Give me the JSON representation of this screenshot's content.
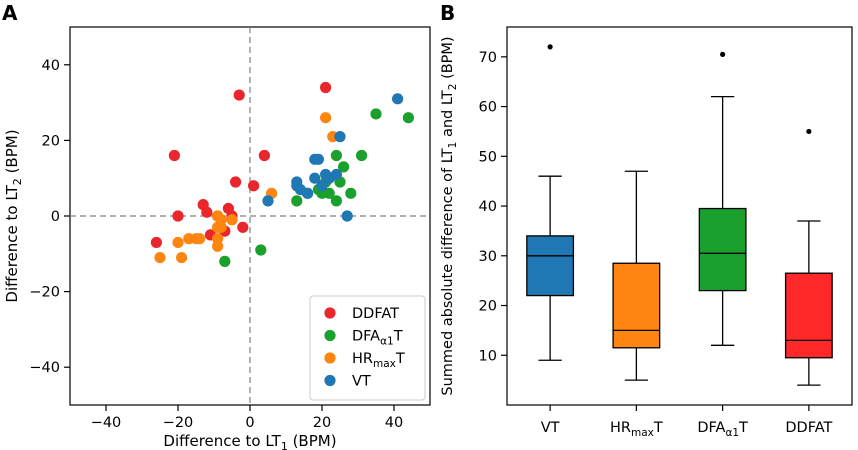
{
  "chart_data": [
    {
      "panel_label": "A",
      "type": "scatter",
      "title": "",
      "xlabel": "Difference to LT",
      "xlabel_sub": "1",
      "xlabel_suffix": " (BPM)",
      "ylabel": "Difference to LT",
      "ylabel_sub": "2",
      "ylabel_suffix": " (BPM)",
      "xlim": [
        -50,
        50
      ],
      "ylim": [
        -50,
        50
      ],
      "xticks": [
        -40,
        -20,
        0,
        20,
        40
      ],
      "yticks": [
        -40,
        -20,
        0,
        20,
        40
      ],
      "xtick_labels": [
        "−40",
        "−20",
        "0",
        "20",
        "40"
      ],
      "ytick_labels": [
        "−40",
        "−20",
        "0",
        "20",
        "40"
      ],
      "reference_lines": "dashed at x = 0 and y = 0",
      "legend_position": "lower-right",
      "series": [
        {
          "name": "DDFAT",
          "legend_main": "DDFAT",
          "legend_sub": "",
          "legend_suffix": "",
          "color": "#e8262b",
          "points": [
            [
              -3,
              32
            ],
            [
              21,
              34
            ],
            [
              -21,
              16
            ],
            [
              4,
              16
            ],
            [
              -4,
              9
            ],
            [
              1,
              8
            ],
            [
              -13,
              3
            ],
            [
              -12,
              1
            ],
            [
              -20,
              0
            ],
            [
              -9,
              0
            ],
            [
              -6,
              2
            ],
            [
              -5,
              0
            ],
            [
              -2,
              -3
            ],
            [
              -7,
              -4
            ],
            [
              -11,
              -5
            ],
            [
              -26,
              -7
            ]
          ]
        },
        {
          "name": "DFAα1T",
          "legend_main": "DFA",
          "legend_sub": "α1",
          "legend_suffix": "T",
          "color": "#1aa02c",
          "points": [
            [
              44,
              26
            ],
            [
              35,
              27
            ],
            [
              31,
              16
            ],
            [
              24,
              16
            ],
            [
              26,
              13
            ],
            [
              21,
              9
            ],
            [
              25,
              9
            ],
            [
              22,
              6
            ],
            [
              19,
              7
            ],
            [
              20,
              6
            ],
            [
              16,
              6
            ],
            [
              13,
              4
            ],
            [
              24,
              4
            ],
            [
              28,
              6
            ],
            [
              3,
              -9
            ],
            [
              -7,
              -12
            ]
          ]
        },
        {
          "name": "HRmaxT",
          "legend_main": "HR",
          "legend_sub": "max",
          "legend_suffix": "T",
          "color": "#fd8510",
          "points": [
            [
              21,
              26
            ],
            [
              23,
              21
            ],
            [
              6,
              6
            ],
            [
              -9,
              0
            ],
            [
              -8,
              -1
            ],
            [
              -5,
              -1
            ],
            [
              -9,
              -3
            ],
            [
              -8,
              -3
            ],
            [
              -15,
              -6
            ],
            [
              -14,
              -6
            ],
            [
              -17,
              -6
            ],
            [
              -9,
              -6
            ],
            [
              -20,
              -7
            ],
            [
              -9,
              -8
            ],
            [
              -25,
              -11
            ],
            [
              -19,
              -11
            ]
          ]
        },
        {
          "name": "VT",
          "legend_main": "VT",
          "legend_sub": "",
          "legend_suffix": "",
          "color": "#1f77b4",
          "points": [
            [
              41,
              31
            ],
            [
              25,
              21
            ],
            [
              18,
              15
            ],
            [
              19,
              15
            ],
            [
              22,
              10
            ],
            [
              18,
              10
            ],
            [
              21,
              11
            ],
            [
              13,
              9
            ],
            [
              13,
              8
            ],
            [
              20,
              8
            ],
            [
              14,
              7
            ],
            [
              24,
              11
            ],
            [
              5,
              4
            ],
            [
              27,
              0
            ],
            [
              16,
              6
            ],
            [
              22,
              10
            ]
          ]
        }
      ]
    },
    {
      "panel_label": "B",
      "type": "box",
      "title": "",
      "xlabel": "",
      "ylabel": "Summed absolute difference of LT",
      "ylabel_sub1": "1",
      "ylabel_mid": " and LT",
      "ylabel_sub2": "2",
      "ylabel_suffix": " (BPM)",
      "ylim": [
        0,
        76
      ],
      "yticks": [
        10,
        20,
        30,
        40,
        50,
        60,
        70
      ],
      "ytick_labels": [
        "10",
        "20",
        "30",
        "40",
        "50",
        "60",
        "70"
      ],
      "boxes": [
        {
          "name": "VT",
          "label_main": "VT",
          "label_sub": "",
          "label_suffix": "",
          "color": "#1f77b4",
          "whisker_low": 9,
          "q1": 22,
          "median": 30,
          "q3": 34,
          "whisker_high": 46,
          "outliers": [
            72
          ]
        },
        {
          "name": "HRmaxT",
          "label_main": "HR",
          "label_sub": "max",
          "label_suffix": "T",
          "color": "#fd8510",
          "whisker_low": 5,
          "q1": 11.5,
          "median": 15,
          "q3": 28.5,
          "whisker_high": 47,
          "outliers": []
        },
        {
          "name": "DFAα1T",
          "label_main": "DFA",
          "label_sub": "α1",
          "label_suffix": "T",
          "color": "#1aa02c",
          "whisker_low": 12,
          "q1": 23,
          "median": 30.5,
          "q3": 39.5,
          "whisker_high": 62,
          "outliers": [
            70.5
          ]
        },
        {
          "name": "DDFAT",
          "label_main": "DDFAT",
          "label_sub": "",
          "label_suffix": "",
          "color": "#ff2828",
          "whisker_low": 4,
          "q1": 9.5,
          "median": 13,
          "q3": 26.5,
          "whisker_high": 37,
          "outliers": [
            55
          ]
        }
      ]
    }
  ]
}
